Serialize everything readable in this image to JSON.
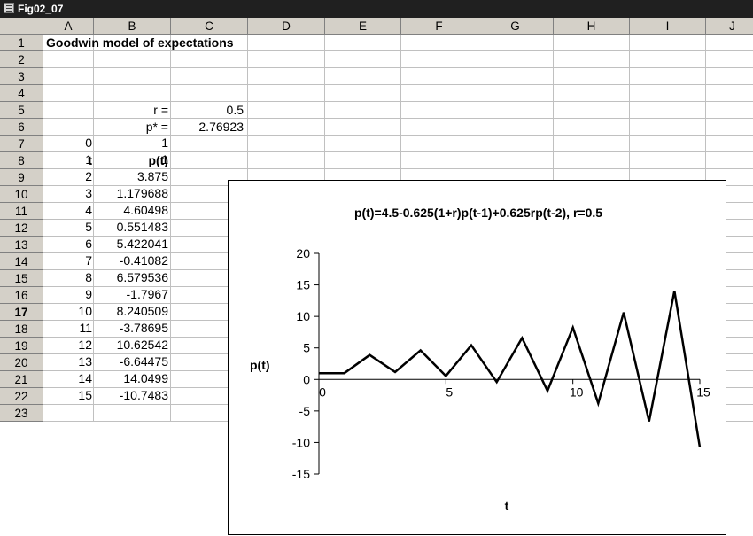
{
  "window": {
    "title": "Fig02_07"
  },
  "columns": [
    "A",
    "B",
    "C",
    "D",
    "E",
    "F",
    "G",
    "H",
    "I",
    "J"
  ],
  "rows": [
    "1",
    "2",
    "3",
    "4",
    "5",
    "6",
    "7",
    "8",
    "9",
    "10",
    "11",
    "12",
    "13",
    "14",
    "15",
    "16",
    "17",
    "18",
    "19",
    "20",
    "21",
    "22",
    "23"
  ],
  "sheet": {
    "title": "Goodwin model of expectations",
    "r_label": "r =",
    "r_value": "0.5",
    "pstar_label": "p* =",
    "pstar_value": "2.76923",
    "col_t_header": "t",
    "col_p_header": "p(t)",
    "t_values": [
      "0",
      "1",
      "2",
      "3",
      "4",
      "5",
      "6",
      "7",
      "8",
      "9",
      "10",
      "11",
      "12",
      "13",
      "14",
      "15"
    ],
    "p_values": [
      "1",
      "1",
      "3.875",
      "1.179688",
      "4.60498",
      "0.551483",
      "5.422041",
      "-0.41082",
      "6.579536",
      "-1.7967",
      "8.240509",
      "-3.78695",
      "10.62542",
      "-6.64475",
      "14.0499",
      "-10.7483"
    ]
  },
  "active_row": "17",
  "chart_data": {
    "type": "line",
    "title": "p(t)=4.5-0.625(1+r)p(t-1)+0.625rp(t-2), r=0.5",
    "xlabel": "t",
    "ylabel": "p(t)",
    "xlim": [
      0,
      15
    ],
    "ylim": [
      -15,
      20
    ],
    "xticks": [
      "0",
      "5",
      "10",
      "15"
    ],
    "yticks": [
      "20",
      "15",
      "10",
      "5",
      "0",
      "-5",
      "-10",
      "-15"
    ],
    "grid": false,
    "line_color": "#000000",
    "x": [
      0,
      1,
      2,
      3,
      4,
      5,
      6,
      7,
      8,
      9,
      10,
      11,
      12,
      13,
      14,
      15
    ],
    "series": [
      {
        "values": [
          1,
          1,
          3.875,
          1.179688,
          4.60498,
          0.551483,
          5.422041,
          -0.41082,
          6.579536,
          -1.7967,
          8.240509,
          -3.78695,
          10.62542,
          -6.64475,
          14.0499,
          -10.7483
        ]
      }
    ]
  }
}
